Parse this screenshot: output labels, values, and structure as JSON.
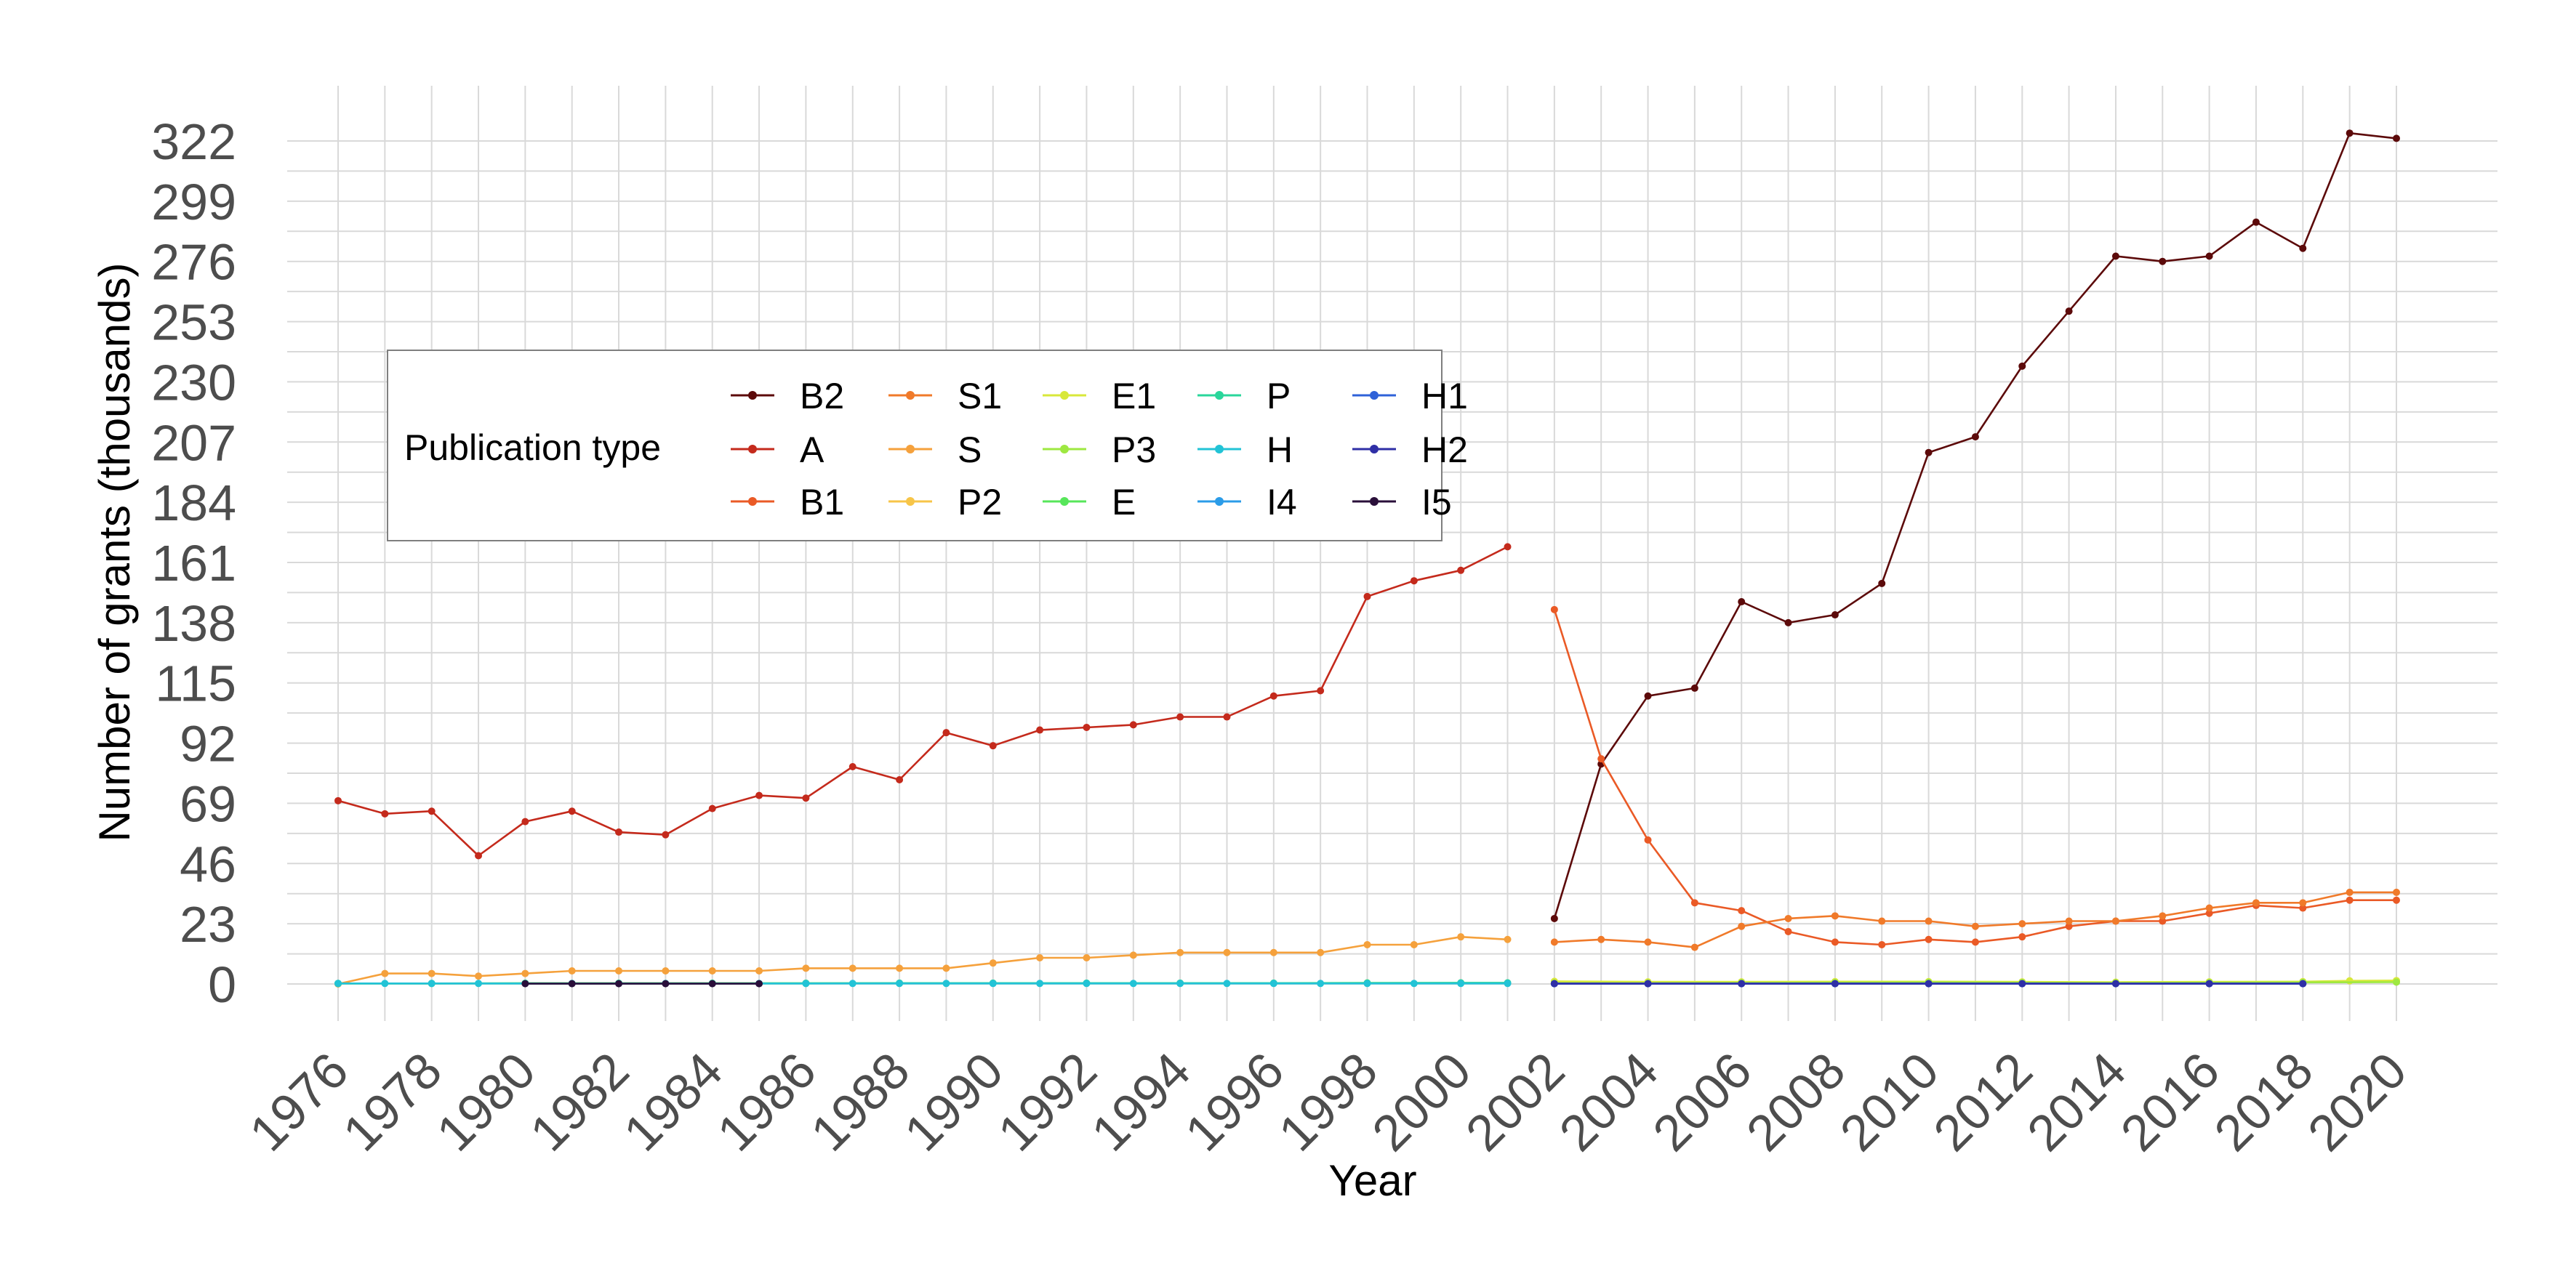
{
  "chart_data": {
    "type": "line",
    "xlabel": "Year",
    "ylabel": "Number of grants (thousands)",
    "legend_title": "Publication type",
    "legend_position": "top-left",
    "grid": true,
    "xlim": [
      1976,
      2020
    ],
    "ylim": [
      0,
      322
    ],
    "x_ticks": [
      1976,
      1978,
      1980,
      1982,
      1984,
      1986,
      1988,
      1990,
      1992,
      1994,
      1996,
      1998,
      2000,
      2002,
      2004,
      2006,
      2008,
      2010,
      2012,
      2014,
      2016,
      2018,
      2020
    ],
    "y_ticks": [
      0,
      23,
      46,
      69,
      92,
      115,
      138,
      161,
      184,
      207,
      230,
      253,
      276,
      299,
      322
    ],
    "legend_columns": [
      [
        "B2",
        "A",
        "B1"
      ],
      [
        "S1",
        "S",
        "P2"
      ],
      [
        "E1",
        "P3",
        "E"
      ],
      [
        "P",
        "H",
        "I4"
      ],
      [
        "H1",
        "H2",
        "I5"
      ]
    ],
    "series": [
      {
        "name": "B2",
        "color": "#5c0a0a",
        "x": [
          2002,
          2003,
          2004,
          2005,
          2006,
          2007,
          2008,
          2009,
          2010,
          2011,
          2012,
          2013,
          2014,
          2015,
          2016,
          2017,
          2018,
          2019,
          2020
        ],
        "values": [
          25,
          84,
          110,
          113,
          146,
          138,
          141,
          153,
          203,
          209,
          236,
          257,
          278,
          276,
          278,
          291,
          281,
          325,
          323
        ]
      },
      {
        "name": "A",
        "color": "#c42a1c",
        "x": [
          1976,
          1977,
          1978,
          1979,
          1980,
          1981,
          1982,
          1983,
          1984,
          1985,
          1986,
          1987,
          1988,
          1989,
          1990,
          1991,
          1992,
          1993,
          1994,
          1995,
          1996,
          1997,
          1998,
          1999,
          2000,
          2001
        ],
        "values": [
          70,
          65,
          66,
          49,
          62,
          66,
          58,
          57,
          67,
          72,
          71,
          83,
          78,
          96,
          91,
          97,
          98,
          99,
          102,
          102,
          110,
          112,
          148,
          154,
          158,
          167
        ]
      },
      {
        "name": "B1",
        "color": "#ea5a26",
        "x": [
          2002,
          2003,
          2004,
          2005,
          2006,
          2007,
          2008,
          2009,
          2010,
          2011,
          2012,
          2013,
          2014,
          2015,
          2016,
          2017,
          2018,
          2019,
          2020
        ],
        "values": [
          143,
          86,
          55,
          31,
          28,
          20,
          16,
          15,
          17,
          16,
          18,
          22,
          24,
          24,
          27,
          30,
          29,
          32,
          32
        ]
      },
      {
        "name": "S1",
        "color": "#f07a2a",
        "x": [
          2002,
          2003,
          2004,
          2005,
          2006,
          2007,
          2008,
          2009,
          2010,
          2011,
          2012,
          2013,
          2014,
          2015,
          2016,
          2017,
          2018,
          2019,
          2020
        ],
        "values": [
          16,
          17,
          16,
          14,
          22,
          25,
          26,
          24,
          24,
          22,
          23,
          24,
          24,
          26,
          29,
          31,
          31,
          35,
          35
        ]
      },
      {
        "name": "S",
        "color": "#f5a13c",
        "x": [
          1976,
          1977,
          1978,
          1979,
          1980,
          1981,
          1982,
          1983,
          1984,
          1985,
          1986,
          1987,
          1988,
          1989,
          1990,
          1991,
          1992,
          1993,
          1994,
          1995,
          1996,
          1997,
          1998,
          1999,
          2000,
          2001
        ],
        "values": [
          0,
          4,
          4,
          3,
          4,
          5,
          5,
          5,
          5,
          5,
          6,
          6,
          6,
          6,
          8,
          10,
          10,
          11,
          12,
          12,
          12,
          12,
          15,
          15,
          18,
          17
        ]
      },
      {
        "name": "P2",
        "color": "#f7c548",
        "x": [
          2002,
          2004,
          2006,
          2008,
          2010,
          2012,
          2014,
          2016,
          2018,
          2020
        ],
        "values": [
          0.5,
          0.5,
          0.5,
          0.6,
          0.6,
          0.6,
          0.5,
          0.6,
          0.7,
          0.9
        ]
      },
      {
        "name": "E1",
        "color": "#d8e83a",
        "x": [
          2002,
          2004,
          2006,
          2008,
          2010,
          2012,
          2014,
          2016,
          2018,
          2019,
          2020
        ],
        "values": [
          1,
          0.8,
          0.8,
          0.9,
          0.9,
          0.8,
          0.7,
          0.8,
          0.9,
          1.2,
          1.3
        ]
      },
      {
        "name": "P3",
        "color": "#9ee841",
        "x": [
          2002,
          2004,
          2006,
          2008,
          2010,
          2012,
          2014,
          2016,
          2018,
          2020
        ],
        "values": [
          0.3,
          0.3,
          0.4,
          0.5,
          0.6,
          0.5,
          0.4,
          0.5,
          0.6,
          0.7
        ]
      },
      {
        "name": "E",
        "color": "#57e65a",
        "x": [
          1976,
          1978,
          1980,
          1982,
          1984,
          1986,
          1988,
          1990,
          1992,
          1994,
          1996,
          1998,
          2000,
          2001
        ],
        "values": [
          0.2,
          0.2,
          0.3,
          0.3,
          0.3,
          0.3,
          0.3,
          0.3,
          0.3,
          0.3,
          0.3,
          0.4,
          0.4,
          0.4
        ]
      },
      {
        "name": "P",
        "color": "#2ad69b",
        "x": [
          1976,
          1978,
          1980,
          1982,
          1984,
          1986,
          1988,
          1990,
          1992,
          1994,
          1996,
          1998,
          2000,
          2001
        ],
        "values": [
          0.2,
          0.2,
          0.2,
          0.2,
          0.2,
          0.2,
          0.3,
          0.3,
          0.3,
          0.3,
          0.3,
          0.3,
          0.4,
          0.4
        ]
      },
      {
        "name": "H",
        "color": "#22c3d6",
        "x": [
          1976,
          1977,
          1978,
          1979,
          1980,
          1981,
          1982,
          1983,
          1984,
          1985,
          1986,
          1987,
          1988,
          1989,
          1990,
          1991,
          1992,
          1993,
          1994,
          1995,
          1996,
          1997,
          1998,
          1999,
          2000,
          2001
        ],
        "values": [
          0.2,
          0.2,
          0.2,
          0.2,
          0.2,
          0.2,
          0.2,
          0.2,
          0.2,
          0.2,
          0.2,
          0.2,
          0.2,
          0.2,
          0.2,
          0.2,
          0.2,
          0.2,
          0.2,
          0.2,
          0.2,
          0.2,
          0.2,
          0.2,
          0.2,
          0.2
        ]
      },
      {
        "name": "I4",
        "color": "#2b9ce8",
        "x": [
          2002,
          2004,
          2006,
          2008,
          2010,
          2012,
          2014,
          2016,
          2018
        ],
        "values": [
          0.1,
          0.1,
          0.1,
          0.1,
          0.1,
          0.1,
          0.1,
          0.1,
          0.1
        ]
      },
      {
        "name": "H1",
        "color": "#2f62d8",
        "x": [
          2002,
          2004,
          2006,
          2008,
          2010,
          2012,
          2014,
          2016,
          2018
        ],
        "values": [
          0.1,
          0.1,
          0.1,
          0.1,
          0.1,
          0.1,
          0.1,
          0.1,
          0.1
        ]
      },
      {
        "name": "H2",
        "color": "#2f2fa6",
        "x": [
          2002,
          2004,
          2006,
          2008,
          2010,
          2012,
          2014,
          2016,
          2018
        ],
        "values": [
          0.1,
          0.1,
          0.1,
          0.1,
          0.1,
          0.1,
          0.1,
          0.1,
          0.1
        ]
      },
      {
        "name": "I5",
        "color": "#2a0f3a",
        "x": [
          1980,
          1981,
          1982,
          1983,
          1984,
          1985
        ],
        "values": [
          0.1,
          0.1,
          0.1,
          0.1,
          0.1,
          0.1
        ]
      }
    ]
  }
}
